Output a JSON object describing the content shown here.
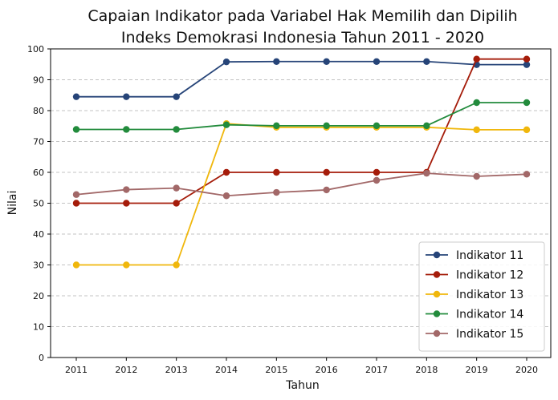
{
  "chart_data": {
    "type": "line",
    "title": "Capaian Indikator pada Variabel Hak Memilih dan Dipilih",
    "subtitle": "Indeks Demokrasi Indonesia Tahun 2011 - 2020",
    "xlabel": "Tahun",
    "ylabel": "Nilai",
    "x": [
      "2011",
      "2012",
      "2013",
      "2014",
      "2015",
      "2016",
      "2017",
      "2018",
      "2019",
      "2020"
    ],
    "ylim": [
      0,
      100
    ],
    "yticks": [
      "0",
      "10",
      "20",
      "30",
      "40",
      "50",
      "60",
      "70",
      "80",
      "90",
      "100"
    ],
    "grid": "horizontal dashed",
    "legend_position": "bottom-right",
    "series": [
      {
        "name": "Indikator 11",
        "color": "#264478",
        "values": [
          84.5,
          84.5,
          84.5,
          95.8,
          95.9,
          95.9,
          95.9,
          95.9,
          94.9,
          94.9
        ]
      },
      {
        "name": "Indikator 12",
        "color": "#a51c0a",
        "values": [
          50,
          50,
          50,
          60,
          60,
          60,
          60,
          60,
          96.7,
          96.7
        ]
      },
      {
        "name": "Indikator 13",
        "color": "#f0b70c",
        "values": [
          30,
          30,
          30,
          75.8,
          74.6,
          74.6,
          74.6,
          74.6,
          73.8,
          73.8
        ]
      },
      {
        "name": "Indikator 14",
        "color": "#228b3c",
        "values": [
          73.9,
          73.9,
          73.9,
          75.4,
          75.1,
          75.1,
          75.1,
          75.1,
          82.6,
          82.6
        ]
      },
      {
        "name": "Indikator 15",
        "color": "#a26868",
        "values": [
          52.8,
          54.4,
          54.9,
          52.4,
          53.5,
          54.3,
          57.4,
          59.7,
          58.7,
          59.4
        ]
      }
    ]
  }
}
